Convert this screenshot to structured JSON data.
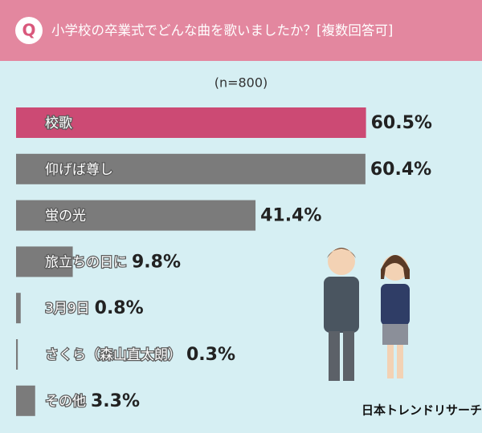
{
  "chart_data": {
    "type": "bar",
    "orientation": "horizontal",
    "badge": "Q",
    "title": "小学校の卒業式でどんな曲を歌いましたか？[複数回答可]",
    "subtitle": "(n=800)",
    "categories": [
      "校歌",
      "仰げば尊し",
      "蛍の光",
      "旅立ちの日に",
      "3月9日",
      "さくら（森山直太朗）",
      "その他"
    ],
    "values": [
      60.5,
      60.4,
      41.4,
      9.8,
      0.8,
      0.3,
      3.3
    ],
    "value_labels": [
      "60.5%",
      "60.4%",
      "41.4%",
      "9.8%",
      "0.8%",
      "0.3%",
      "3.3%"
    ],
    "colors": [
      "#cc4a74",
      "#7b7b7b",
      "#7b7b7b",
      "#7b7b7b",
      "#7b7b7b",
      "#7b7b7b",
      "#7b7b7b"
    ],
    "xlim": [
      0,
      80
    ],
    "source": "日本トレンドリサーチ"
  }
}
